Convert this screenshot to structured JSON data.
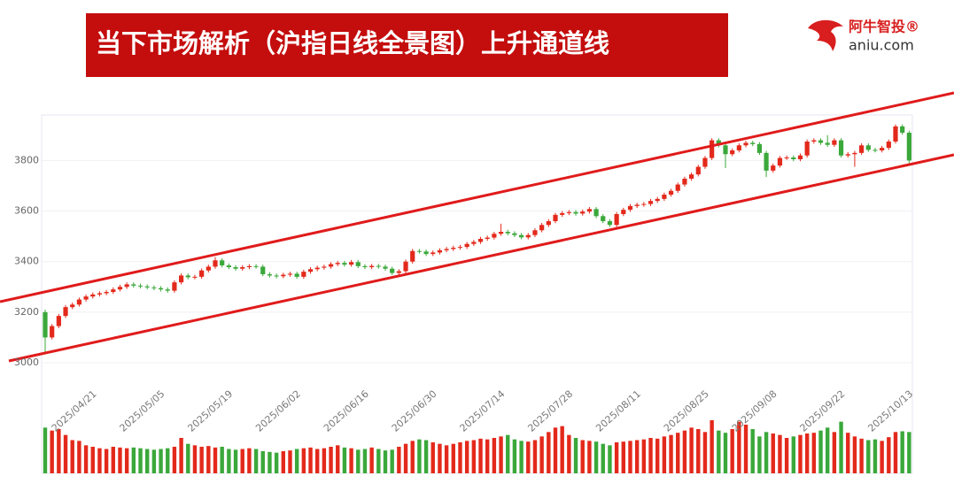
{
  "header": {
    "title": "当下市场解析（沪指日线全景图）上升通道线",
    "brand": "阿牛智投®",
    "site": "aniu.com"
  },
  "chart_data": {
    "type": "candlestick",
    "up_color": "#e3291b",
    "down_color": "#3aa83a",
    "grid": true,
    "ylim": [
      3000,
      3980
    ],
    "yticks": [
      3000,
      3200,
      3400,
      3600,
      3800
    ],
    "categories": [
      null,
      null,
      null,
      "2025/04/21",
      null,
      null,
      null,
      null,
      null,
      null,
      null,
      null,
      null,
      "2025/05/05",
      null,
      null,
      null,
      null,
      null,
      null,
      null,
      null,
      null,
      "2025/05/19",
      null,
      null,
      null,
      null,
      null,
      null,
      null,
      null,
      null,
      "2025/06/02",
      null,
      null,
      null,
      null,
      null,
      null,
      null,
      null,
      null,
      "2025/06/16",
      null,
      null,
      null,
      null,
      null,
      null,
      null,
      null,
      null,
      "2025/06/30",
      null,
      null,
      null,
      null,
      null,
      null,
      null,
      null,
      null,
      "2025/07/14",
      null,
      null,
      null,
      null,
      null,
      null,
      null,
      null,
      null,
      "2025/07/28",
      null,
      null,
      null,
      null,
      null,
      null,
      null,
      null,
      null,
      "2025/08/11",
      null,
      null,
      null,
      null,
      null,
      null,
      null,
      null,
      null,
      "2025/08/25",
      null,
      null,
      null,
      null,
      null,
      null,
      null,
      null,
      null,
      "2025/09/08",
      null,
      null,
      null,
      null,
      null,
      null,
      null,
      null,
      null,
      "2025/09/22",
      null,
      null,
      null,
      null,
      null,
      null,
      null,
      null,
      null,
      "2025/10/13",
      null,
      null,
      null,
      null
    ],
    "open": [
      3200,
      3100,
      3145,
      3185,
      3220,
      3230,
      3250,
      3262,
      3270,
      3275,
      3280,
      3290,
      3300,
      3310,
      3305,
      3302,
      3298,
      3295,
      3290,
      3285,
      3318,
      3345,
      3338,
      3340,
      3365,
      3380,
      3405,
      3385,
      3378,
      3372,
      3378,
      3382,
      3380,
      3350,
      3345,
      3342,
      3348,
      3352,
      3340,
      3360,
      3370,
      3376,
      3380,
      3390,
      3395,
      3388,
      3398,
      3382,
      3378,
      3383,
      3380,
      3372,
      3355,
      3362,
      3400,
      3442,
      3440,
      3430,
      3436,
      3445,
      3450,
      3455,
      3458,
      3470,
      3478,
      3490,
      3495,
      3510,
      3518,
      3512,
      3505,
      3496,
      3505,
      3524,
      3545,
      3560,
      3585,
      3592,
      3596,
      3590,
      3598,
      3608,
      3580,
      3560,
      3545,
      3588,
      3605,
      3620,
      3625,
      3628,
      3640,
      3648,
      3665,
      3680,
      3705,
      3728,
      3745,
      3775,
      3810,
      3880,
      3860,
      3825,
      3840,
      3860,
      3870,
      3865,
      3830,
      3760,
      3780,
      3810,
      3812,
      3805,
      3820,
      3875,
      3880,
      3870,
      3862,
      3880,
      3820,
      3825,
      3830,
      3860,
      3842,
      3840,
      3850,
      3875,
      3935,
      3910
    ],
    "high": [
      3210,
      3153,
      3193,
      3228,
      3238,
      3258,
      3270,
      3278,
      3283,
      3288,
      3298,
      3308,
      3318,
      3318,
      3313,
      3310,
      3306,
      3303,
      3298,
      3326,
      3353,
      3353,
      3348,
      3373,
      3388,
      3418,
      3413,
      3393,
      3386,
      3386,
      3390,
      3390,
      3388,
      3358,
      3353,
      3356,
      3360,
      3360,
      3368,
      3378,
      3384,
      3388,
      3398,
      3403,
      3403,
      3406,
      3406,
      3390,
      3391,
      3391,
      3388,
      3380,
      3370,
      3408,
      3450,
      3450,
      3448,
      3444,
      3453,
      3458,
      3463,
      3466,
      3478,
      3486,
      3498,
      3503,
      3518,
      3550,
      3526,
      3520,
      3513,
      3513,
      3532,
      3553,
      3568,
      3593,
      3600,
      3604,
      3604,
      3606,
      3616,
      3616,
      3588,
      3568,
      3596,
      3613,
      3628,
      3633,
      3636,
      3648,
      3656,
      3673,
      3688,
      3713,
      3736,
      3753,
      3783,
      3818,
      3888,
      3888,
      3868,
      3848,
      3868,
      3878,
      3878,
      3873,
      3838,
      3788,
      3818,
      3820,
      3820,
      3828,
      3883,
      3888,
      3888,
      3900,
      3888,
      3888,
      3833,
      3838,
      3868,
      3868,
      3850,
      3858,
      3883,
      3943,
      3943,
      3918
    ],
    "low": [
      3040,
      3092,
      3137,
      3177,
      3212,
      3222,
      3242,
      3254,
      3262,
      3267,
      3272,
      3282,
      3292,
      3297,
      3294,
      3290,
      3287,
      3282,
      3277,
      3277,
      3310,
      3330,
      3330,
      3332,
      3357,
      3372,
      3377,
      3370,
      3364,
      3364,
      3370,
      3372,
      3342,
      3337,
      3334,
      3334,
      3340,
      3332,
      3332,
      3352,
      3362,
      3368,
      3372,
      3382,
      3380,
      3380,
      3374,
      3370,
      3370,
      3372,
      3364,
      3347,
      3347,
      3354,
      3392,
      3432,
      3422,
      3422,
      3428,
      3437,
      3442,
      3447,
      3450,
      3462,
      3470,
      3482,
      3487,
      3502,
      3504,
      3497,
      3488,
      3488,
      3497,
      3516,
      3537,
      3552,
      3577,
      3584,
      3582,
      3582,
      3590,
      3572,
      3552,
      3537,
      3537,
      3580,
      3597,
      3612,
      3617,
      3620,
      3632,
      3640,
      3657,
      3672,
      3697,
      3720,
      3737,
      3767,
      3802,
      3852,
      3770,
      3817,
      3832,
      3852,
      3857,
      3822,
      3735,
      3752,
      3772,
      3802,
      3797,
      3797,
      3812,
      3867,
      3862,
      3854,
      3854,
      3812,
      3812,
      3775,
      3822,
      3834,
      3832,
      3832,
      3842,
      3867,
      3902,
      3790
    ],
    "close": [
      3100,
      3145,
      3185,
      3220,
      3230,
      3250,
      3262,
      3270,
      3275,
      3280,
      3290,
      3300,
      3310,
      3305,
      3302,
      3298,
      3295,
      3290,
      3285,
      3318,
      3345,
      3338,
      3340,
      3365,
      3380,
      3405,
      3385,
      3378,
      3372,
      3378,
      3382,
      3380,
      3350,
      3345,
      3342,
      3348,
      3352,
      3340,
      3360,
      3370,
      3376,
      3380,
      3390,
      3395,
      3388,
      3398,
      3382,
      3378,
      3383,
      3380,
      3372,
      3355,
      3362,
      3400,
      3442,
      3440,
      3430,
      3436,
      3445,
      3450,
      3455,
      3458,
      3470,
      3478,
      3490,
      3495,
      3510,
      3518,
      3512,
      3505,
      3496,
      3505,
      3524,
      3545,
      3560,
      3585,
      3592,
      3596,
      3590,
      3598,
      3608,
      3580,
      3560,
      3545,
      3588,
      3605,
      3620,
      3625,
      3628,
      3640,
      3648,
      3665,
      3680,
      3705,
      3728,
      3745,
      3775,
      3810,
      3880,
      3860,
      3825,
      3840,
      3860,
      3870,
      3865,
      3830,
      3760,
      3780,
      3810,
      3812,
      3805,
      3820,
      3875,
      3880,
      3870,
      3862,
      3880,
      3820,
      3825,
      3830,
      3860,
      3842,
      3840,
      3850,
      3875,
      3935,
      3910,
      3800
    ],
    "volume": [
      62,
      58,
      60,
      52,
      45,
      44,
      38,
      36,
      34,
      33,
      36,
      35,
      34,
      35,
      34,
      33,
      32,
      33,
      34,
      36,
      48,
      40,
      38,
      36,
      37,
      35,
      36,
      33,
      32,
      33,
      34,
      33,
      30,
      29,
      28,
      30,
      31,
      33,
      34,
      35,
      33,
      34,
      36,
      38,
      35,
      34,
      32,
      33,
      35,
      33,
      31,
      32,
      36,
      40,
      44,
      46,
      45,
      42,
      40,
      38,
      40,
      42,
      44,
      45,
      47,
      46,
      48,
      50,
      52,
      46,
      44,
      43,
      45,
      50,
      56,
      62,
      64,
      52,
      48,
      45,
      44,
      43,
      40,
      38,
      42,
      43,
      44,
      45,
      46,
      48,
      47,
      50,
      52,
      55,
      58,
      62,
      60,
      56,
      72,
      58,
      55,
      60,
      70,
      66,
      60,
      50,
      56,
      54,
      52,
      48,
      50,
      52,
      54,
      55,
      58,
      62,
      56,
      70,
      55,
      50,
      47,
      45,
      46,
      44,
      49,
      56,
      57,
      56
    ]
  }
}
